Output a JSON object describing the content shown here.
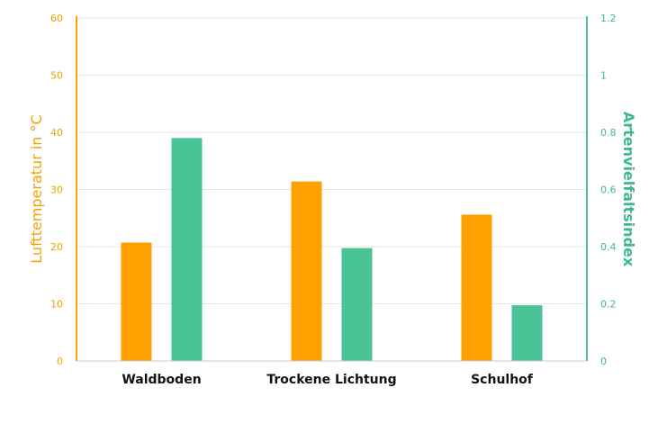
{
  "chart_data": {
    "type": "bar",
    "categories": [
      "Waldboden",
      "Trockene Lichtung",
      "Schulhof"
    ],
    "series": [
      {
        "axis": "left",
        "color": "#ffa000",
        "values": [
          20.7,
          31.4,
          25.6
        ]
      },
      {
        "axis": "right",
        "color": "#4ac497",
        "values": [
          0.78,
          0.395,
          0.195
        ]
      }
    ],
    "y_left": {
      "label": "Lufttemperatur in °C",
      "range": [
        0,
        60
      ],
      "ticks": [
        "0",
        "10",
        "20",
        "30",
        "40",
        "50",
        "60"
      ],
      "color": "#ffa000"
    },
    "y_right": {
      "label": "Artenvielfaltsindex",
      "range": [
        0,
        1.2
      ],
      "ticks": [
        "0",
        "0.2",
        "0.4",
        "0.6",
        "0.8",
        "1",
        "1.2"
      ],
      "color": "#3dba8a"
    },
    "grid": true
  }
}
